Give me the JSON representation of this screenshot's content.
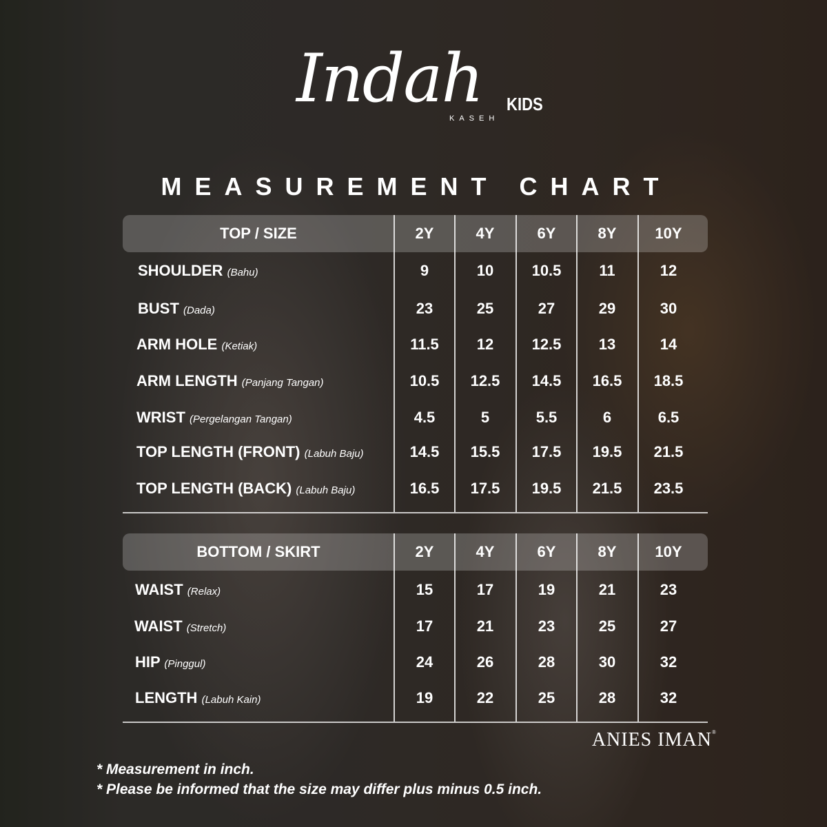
{
  "logo": {
    "script": "Indah",
    "kids": "KIDS",
    "kaseh": "KASEH"
  },
  "title": "MEASUREMENT CHART",
  "sizes": [
    "2Y",
    "4Y",
    "6Y",
    "8Y",
    "10Y"
  ],
  "top": {
    "header": "TOP / SIZE",
    "rows": [
      {
        "label": "SHOULDER",
        "sub": "(Bahu)",
        "values": [
          "9",
          "10",
          "10.5",
          "11",
          "12"
        ]
      },
      {
        "label": "BUST",
        "sub": "(Dada)",
        "values": [
          "23",
          "25",
          "27",
          "29",
          "30"
        ]
      },
      {
        "label": "ARM HOLE",
        "sub": "(Ketiak)",
        "values": [
          "11.5",
          "12",
          "12.5",
          "13",
          "14"
        ]
      },
      {
        "label": "ARM LENGTH",
        "sub": "(Panjang Tangan)",
        "values": [
          "10.5",
          "12.5",
          "14.5",
          "16.5",
          "18.5"
        ]
      },
      {
        "label": "WRIST",
        "sub": "(Pergelangan Tangan)",
        "values": [
          "4.5",
          "5",
          "5.5",
          "6",
          "6.5"
        ]
      },
      {
        "label": "TOP LENGTH (FRONT)",
        "sub": "(Labuh Baju)",
        "values": [
          "14.5",
          "15.5",
          "17.5",
          "19.5",
          "21.5"
        ]
      },
      {
        "label": "TOP LENGTH (BACK)",
        "sub": "(Labuh Baju)",
        "values": [
          "16.5",
          "17.5",
          "19.5",
          "21.5",
          "23.5"
        ]
      }
    ]
  },
  "bottom": {
    "header": "BOTTOM / SKIRT",
    "rows": [
      {
        "label": "WAIST",
        "sub": "(Relax)",
        "values": [
          "15",
          "17",
          "19",
          "21",
          "23"
        ]
      },
      {
        "label": "WAIST",
        "sub": "(Stretch)",
        "values": [
          "17",
          "21",
          "23",
          "25",
          "27"
        ]
      },
      {
        "label": "HIP",
        "sub": "(Pinggul)",
        "values": [
          "24",
          "26",
          "28",
          "30",
          "32"
        ]
      },
      {
        "label": "LENGTH",
        "sub": "(Labuh Kain)",
        "values": [
          "19",
          "22",
          "25",
          "28",
          "32"
        ]
      }
    ]
  },
  "brand": {
    "name": "ANIES IMAN",
    "mark": "®"
  },
  "notes": [
    "* Measurement in inch.",
    "* Please be informed that the size may differ plus minus 0.5 inch."
  ]
}
